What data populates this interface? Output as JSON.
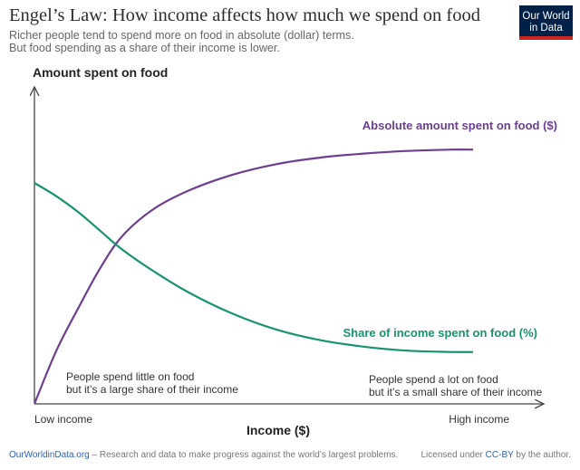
{
  "header": {
    "title": "Engel’s Law: How income affects how much we spend on food",
    "subtitle_line1": "Richer people tend to spend more on food in absolute (dollar) terms.",
    "subtitle_line2": "But food spending as a share of their income is lower."
  },
  "logo": {
    "line1": "Our World",
    "line2": "in Data",
    "bg_color": "#002147",
    "bar_color": "#ce261e"
  },
  "chart_data": {
    "type": "line",
    "ylabel": "Amount spent on food",
    "xlabel": "Income ($)",
    "x_tick_labels": [
      "Low income",
      "High income"
    ],
    "xlim": [
      0,
      1
    ],
    "ylim": [
      0,
      1
    ],
    "grid": false,
    "series": [
      {
        "name": "Absolute amount spent on food ($)",
        "color": "#6d3e91",
        "points": [
          [
            0,
            0
          ],
          [
            0.05,
            0.2
          ],
          [
            0.1,
            0.36
          ],
          [
            0.15,
            0.51
          ],
          [
            0.2,
            0.63
          ],
          [
            0.27,
            0.73
          ],
          [
            0.35,
            0.8
          ],
          [
            0.45,
            0.86
          ],
          [
            0.55,
            0.9
          ],
          [
            0.65,
            0.925
          ],
          [
            0.75,
            0.94
          ],
          [
            0.85,
            0.95
          ],
          [
            0.95,
            0.955
          ],
          [
            1,
            0.955
          ]
        ]
      },
      {
        "name": "Share of income spent on food (%)",
        "color": "#18936f",
        "points": [
          [
            0,
            0.83
          ],
          [
            0.05,
            0.78
          ],
          [
            0.1,
            0.72
          ],
          [
            0.15,
            0.65
          ],
          [
            0.2,
            0.58
          ],
          [
            0.27,
            0.5
          ],
          [
            0.35,
            0.42
          ],
          [
            0.45,
            0.34
          ],
          [
            0.55,
            0.28
          ],
          [
            0.65,
            0.24
          ],
          [
            0.75,
            0.215
          ],
          [
            0.85,
            0.2
          ],
          [
            0.95,
            0.195
          ],
          [
            1,
            0.195
          ]
        ]
      }
    ],
    "annotations": {
      "low_line1": "People spend little on food",
      "low_line2": "but it’s a large share of their income",
      "high_line1": "People spend a lot on food",
      "high_line2": "but it’s a small share of their income"
    }
  },
  "footer": {
    "site": "OurWorldinData.org",
    "tagline": " – Research and data to make progress against the world’s largest problems.",
    "license_prefix": "Licensed under ",
    "license_link": "CC-BY",
    "license_suffix": " by the author."
  }
}
